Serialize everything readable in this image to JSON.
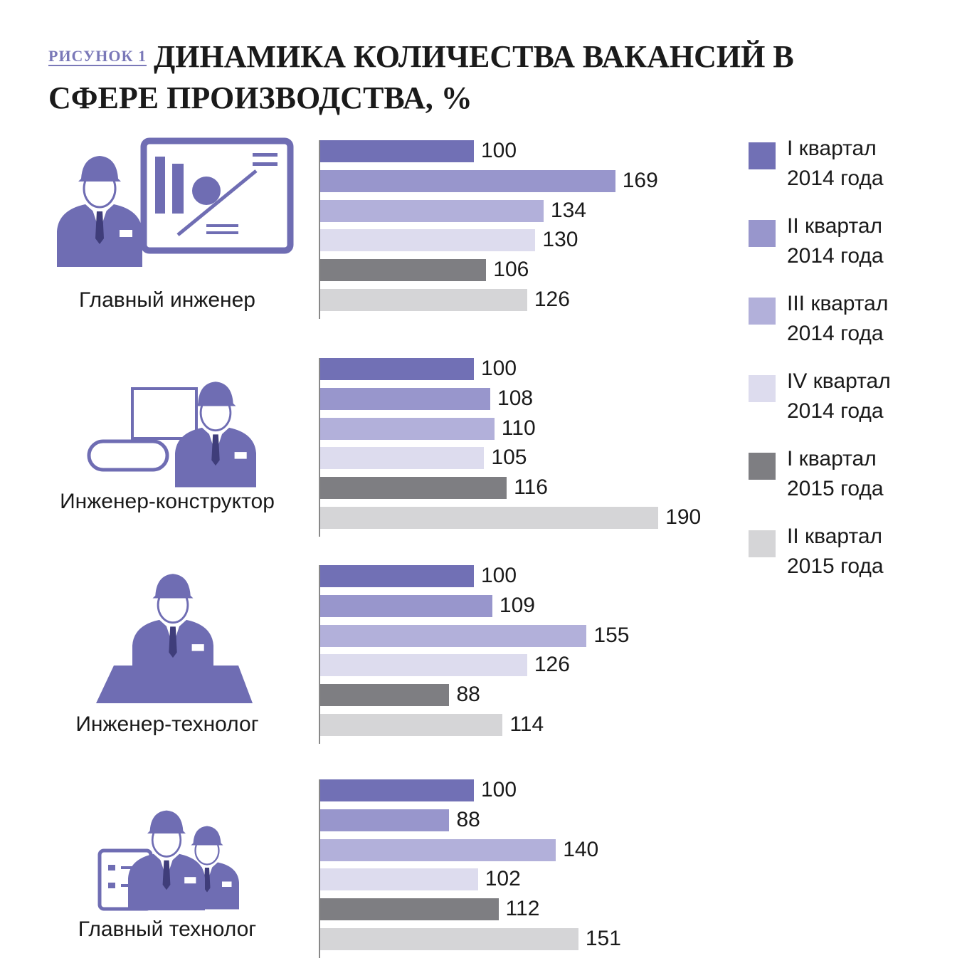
{
  "chart_data": {
    "type": "bar",
    "orientation": "horizontal",
    "figure_label": "РИСУНОК 1",
    "title": "ДИНАМИКА КОЛИЧЕСТВА ВАКАНСИЙ В СФЕРЕ ПРОИЗВОДСТВА, %",
    "categories": [
      "Главный инженер",
      "Инженер-конструктор",
      "Инженер-технолог",
      "Главный технолог"
    ],
    "xlim": [
      25,
      200
    ],
    "series": [
      {
        "name": "I квартал 2014 года",
        "color": "#7170b5",
        "values": [
          100,
          100,
          100,
          100
        ]
      },
      {
        "name": "II квартал 2014 года",
        "color": "#9896cc",
        "values": [
          169,
          108,
          109,
          88
        ]
      },
      {
        "name": "III квартал 2014 года",
        "color": "#b2b0da",
        "values": [
          134,
          110,
          155,
          140
        ]
      },
      {
        "name": "IV квартал 2014 года",
        "color": "#dddcee",
        "values": [
          130,
          105,
          126,
          102
        ]
      },
      {
        "name": "I квартал 2015 года",
        "color": "#7e7e82",
        "values": [
          106,
          116,
          88,
          112
        ]
      },
      {
        "name": "II квартал 2015 года",
        "color": "#d5d5d7",
        "values": [
          126,
          190,
          114,
          151
        ]
      }
    ]
  }
}
